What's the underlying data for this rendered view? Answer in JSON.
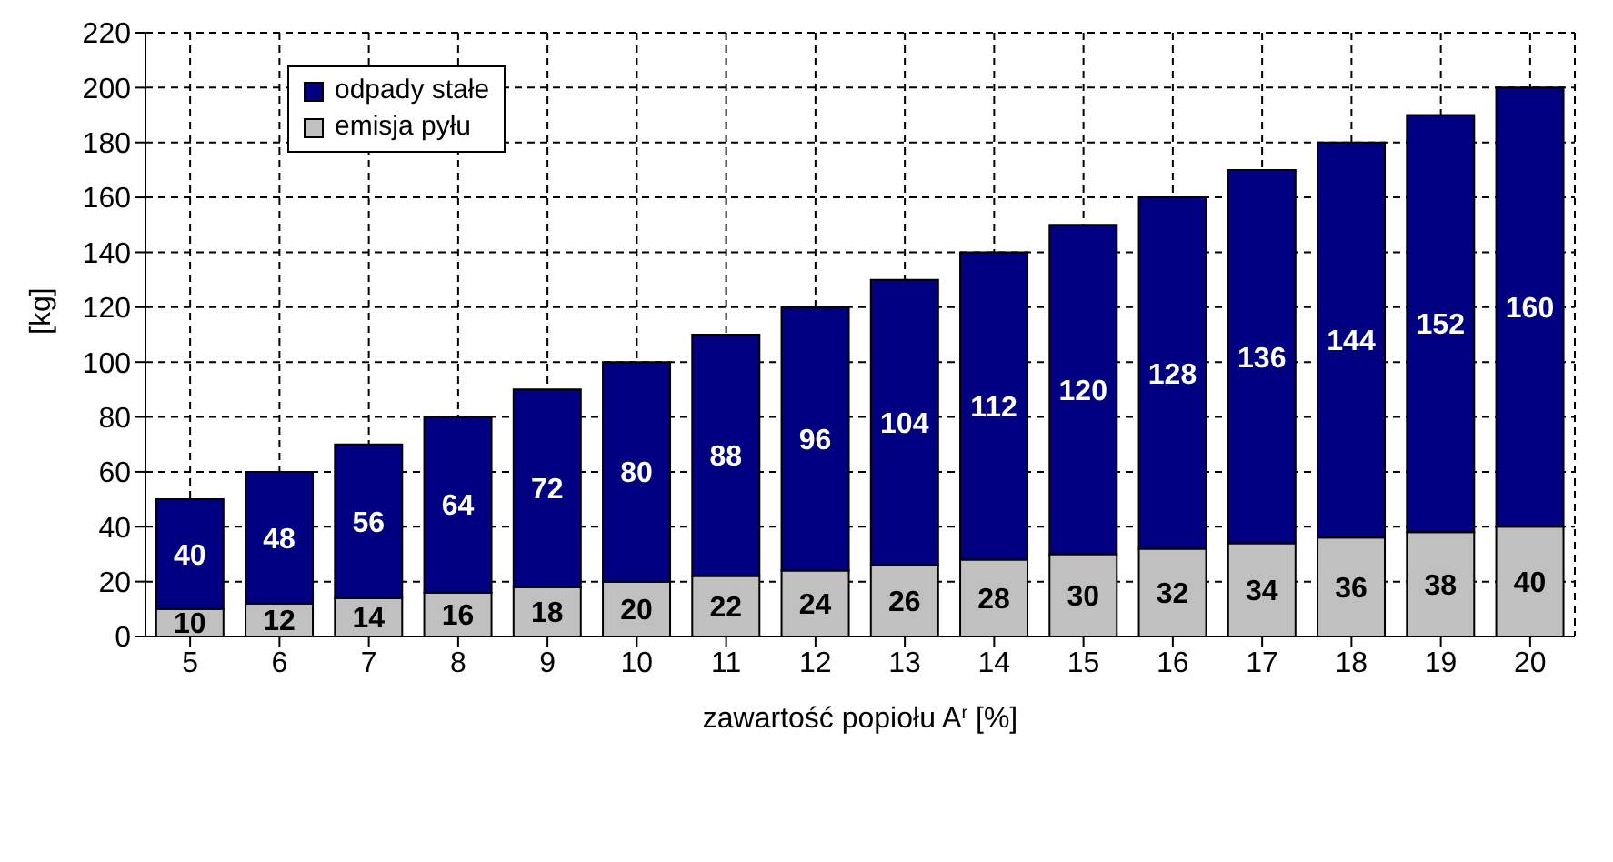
{
  "chart_data": {
    "type": "bar",
    "stacked": true,
    "xlabel": "zawartość popiołu A$^{r}$ [%]",
    "ylabel": "[kg]",
    "categories": [
      "5",
      "6",
      "7",
      "8",
      "9",
      "10",
      "11",
      "12",
      "13",
      "14",
      "15",
      "16",
      "17",
      "18",
      "19",
      "20"
    ],
    "series": [
      {
        "name": "emisja pyłu",
        "color": "#c0c0c0",
        "values": [
          10,
          12,
          14,
          16,
          18,
          20,
          22,
          24,
          26,
          28,
          30,
          32,
          34,
          36,
          38,
          40
        ]
      },
      {
        "name": "odpady stałe",
        "color": "#000080",
        "values": [
          40,
          48,
          56,
          64,
          72,
          80,
          88,
          96,
          104,
          112,
          120,
          128,
          136,
          144,
          152,
          160
        ]
      }
    ],
    "ylim": [
      0,
      220
    ],
    "yticks": [
      0,
      20,
      40,
      60,
      80,
      100,
      120,
      140,
      160,
      180,
      200,
      220
    ],
    "grid": true,
    "legend": "top left",
    "data_labels": true
  }
}
